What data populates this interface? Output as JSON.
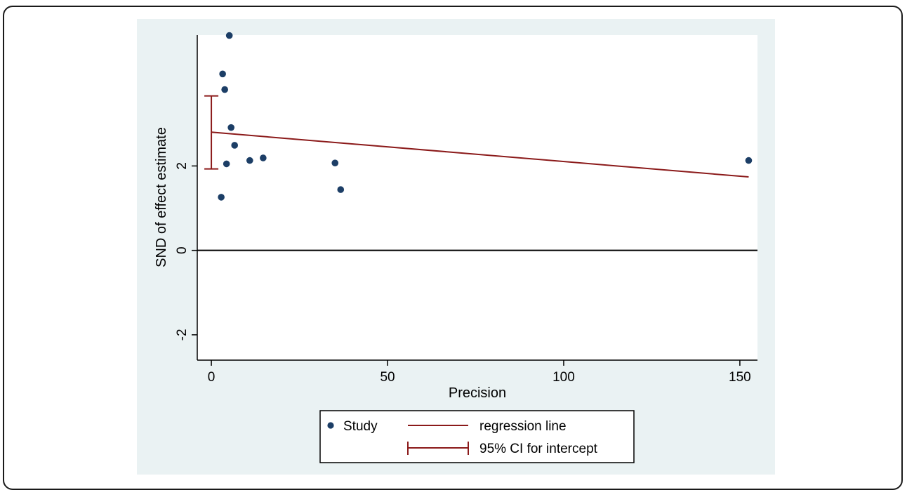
{
  "chart_data": {
    "type": "scatter",
    "xlabel": "Precision",
    "ylabel": "SND of effect estimate",
    "xlim": [
      -4,
      155
    ],
    "ylim": [
      -2.6,
      5.1
    ],
    "xticks": [
      {
        "value": 0,
        "label": "0"
      },
      {
        "value": 50,
        "label": "50"
      },
      {
        "value": 100,
        "label": "100"
      },
      {
        "value": 150,
        "label": "150"
      }
    ],
    "yticks": [
      {
        "value": -2,
        "label": "-2"
      },
      {
        "value": 0,
        "label": "0"
      },
      {
        "value": 2,
        "label": "2"
      }
    ],
    "zero_line": 0,
    "series": [
      {
        "name": "Study",
        "kind": "points",
        "color": "#1c3e66",
        "points": [
          {
            "x": 2.8,
            "y": 1.26
          },
          {
            "x": 3.2,
            "y": 4.18
          },
          {
            "x": 3.8,
            "y": 3.81
          },
          {
            "x": 4.3,
            "y": 2.05
          },
          {
            "x": 5.1,
            "y": 5.09
          },
          {
            "x": 5.6,
            "y": 2.91
          },
          {
            "x": 6.6,
            "y": 2.49
          },
          {
            "x": 10.9,
            "y": 2.13
          },
          {
            "x": 14.7,
            "y": 2.19
          },
          {
            "x": 35.1,
            "y": 2.07
          },
          {
            "x": 36.7,
            "y": 1.44
          },
          {
            "x": 152.5,
            "y": 2.13
          }
        ]
      },
      {
        "name": "regression line",
        "kind": "line",
        "color": "#8b1a1a",
        "points": [
          {
            "x": 0,
            "y": 2.8
          },
          {
            "x": 152.5,
            "y": 1.74
          }
        ]
      },
      {
        "name": "95% CI for intercept",
        "kind": "error_bar",
        "color": "#8b1a1a",
        "x": 0,
        "low": 1.93,
        "high": 3.66
      }
    ],
    "legend": {
      "placement": "bottom-center",
      "entries": [
        "Study",
        "regression line",
        "95% CI for intercept"
      ]
    },
    "grid": false
  }
}
